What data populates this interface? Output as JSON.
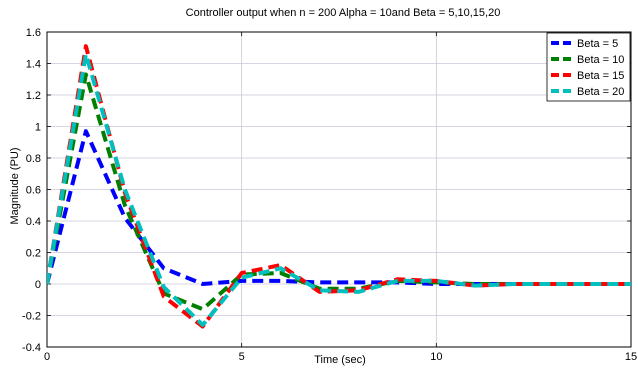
{
  "chart_data": {
    "type": "line",
    "title": "Controller output when n = 200 Alpha = 10and Beta = 5,10,15,20",
    "xlabel": "Time (sec)",
    "ylabel": "Magnitude (PU)",
    "xlim": [
      0,
      15
    ],
    "ylim": [
      -0.4,
      1.6
    ],
    "xticks": [
      0,
      5,
      10,
      15
    ],
    "yticks": [
      -0.4,
      -0.2,
      0,
      0.2,
      0.4,
      0.6,
      0.8,
      1,
      1.2,
      1.4,
      1.6
    ],
    "grid": true,
    "legend_position": "top-right",
    "x": [
      0,
      1,
      2,
      3,
      4,
      5,
      6,
      7,
      8,
      9,
      10,
      11,
      12,
      13,
      14,
      15
    ],
    "series": [
      {
        "name": "Beta = 5",
        "color": "#0000ff",
        "values": [
          0,
          0.97,
          0.42,
          0.1,
          0.0,
          0.02,
          0.02,
          0.01,
          0.01,
          0.01,
          0.0,
          0.0,
          0.0,
          0.0,
          0.0,
          0.0
        ]
      },
      {
        "name": "Beta = 10",
        "color": "#007f00",
        "values": [
          0,
          1.33,
          0.5,
          -0.06,
          -0.16,
          0.06,
          0.07,
          -0.03,
          -0.03,
          0.02,
          0.01,
          0.0,
          0.0,
          0.0,
          0.0,
          0.0
        ]
      },
      {
        "name": "Beta = 15",
        "color": "#ff0000",
        "values": [
          0,
          1.51,
          0.58,
          -0.08,
          -0.27,
          0.07,
          0.12,
          -0.05,
          -0.04,
          0.03,
          0.02,
          -0.01,
          0.0,
          0.0,
          0.0,
          0.0
        ]
      },
      {
        "name": "Beta = 20",
        "color": "#00bfbf",
        "values": [
          0,
          1.46,
          0.6,
          -0.02,
          -0.26,
          0.04,
          0.1,
          -0.04,
          -0.05,
          0.02,
          0.02,
          -0.01,
          0.0,
          0.0,
          0.0,
          0.0
        ]
      }
    ]
  }
}
